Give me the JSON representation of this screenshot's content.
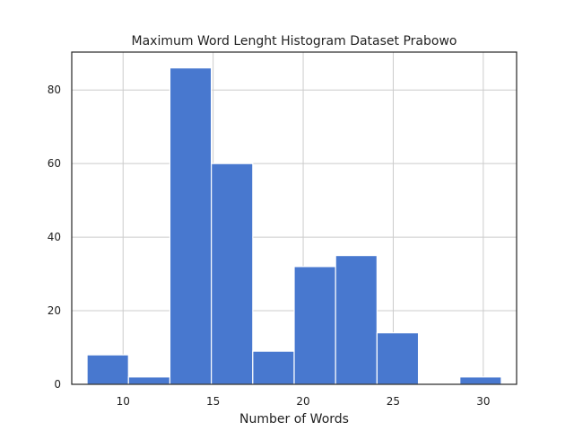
{
  "chart_data": {
    "type": "bar",
    "title": "Maximum Word Lenght Histogram Dataset Prabowo",
    "xlabel": "Number of Words",
    "ylabel": "",
    "xlim": [
      7.15,
      31.85
    ],
    "ylim": [
      0,
      90.3
    ],
    "xticks": [
      10,
      15,
      20,
      25,
      30
    ],
    "yticks": [
      0,
      20,
      40,
      60,
      80
    ],
    "grid": true,
    "bin_edges": [
      8.0,
      10.3,
      12.6,
      14.9,
      17.2,
      19.5,
      21.8,
      24.1,
      26.4,
      28.7,
      31.0
    ],
    "counts": [
      8,
      2,
      86,
      60,
      9,
      32,
      35,
      14,
      0,
      2
    ],
    "bar_color": "#4878cf"
  }
}
